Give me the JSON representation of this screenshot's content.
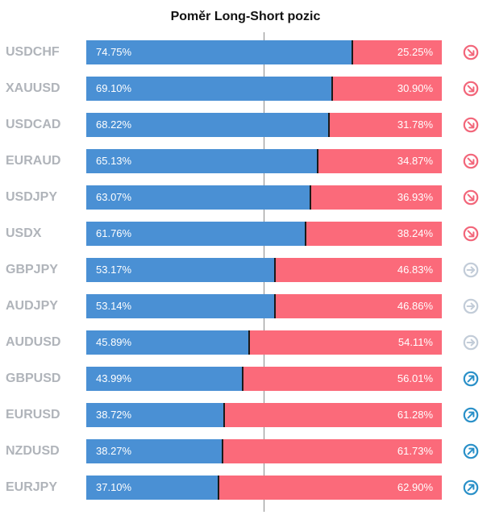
{
  "title": "Poměr Long-Short pozic",
  "colors": {
    "long": "#4a90d4",
    "short": "#fb6a7a",
    "signal_down": "#f2667a",
    "signal_neutral": "#c2ccd8",
    "signal_up": "#2a90c8"
  },
  "chart_data": {
    "type": "bar",
    "stacked": true,
    "orientation": "horizontal",
    "title": "Poměr Long-Short pozic",
    "categories": [
      "USDCHF",
      "XAUUSD",
      "USDCAD",
      "EURAUD",
      "USDJPY",
      "USDX",
      "GBPJPY",
      "AUDJPY",
      "AUDUSD",
      "GBPUSD",
      "EURUSD",
      "NZDUSD",
      "EURJPY"
    ],
    "series": [
      {
        "values": [
          74.75,
          69.1,
          68.22,
          65.13,
          63.07,
          61.76,
          53.17,
          53.14,
          45.89,
          43.99,
          38.72,
          38.27,
          37.1
        ]
      },
      {
        "values": [
          25.25,
          30.9,
          31.78,
          34.87,
          36.93,
          38.24,
          46.83,
          46.86,
          54.11,
          56.01,
          61.28,
          61.73,
          62.9
        ]
      }
    ],
    "long_labels": [
      "74.75%",
      "69.10%",
      "68.22%",
      "65.13%",
      "63.07%",
      "61.76%",
      "53.17%",
      "53.14%",
      "45.89%",
      "43.99%",
      "38.72%",
      "38.27%",
      "37.10%"
    ],
    "short_labels": [
      "25.25%",
      "30.90%",
      "31.78%",
      "34.87%",
      "36.93%",
      "38.24%",
      "46.83%",
      "46.86%",
      "54.11%",
      "56.01%",
      "61.28%",
      "61.73%",
      "62.90%"
    ],
    "signals": [
      "down-right-arrow-icon",
      "down-right-arrow-icon",
      "down-right-arrow-icon",
      "down-right-arrow-icon",
      "down-right-arrow-icon",
      "down-right-arrow-icon",
      "right-arrow-icon",
      "right-arrow-icon",
      "right-arrow-icon",
      "up-right-arrow-icon",
      "up-right-arrow-icon",
      "up-right-arrow-icon",
      "up-right-arrow-icon"
    ],
    "xlim": [
      0,
      100
    ]
  }
}
